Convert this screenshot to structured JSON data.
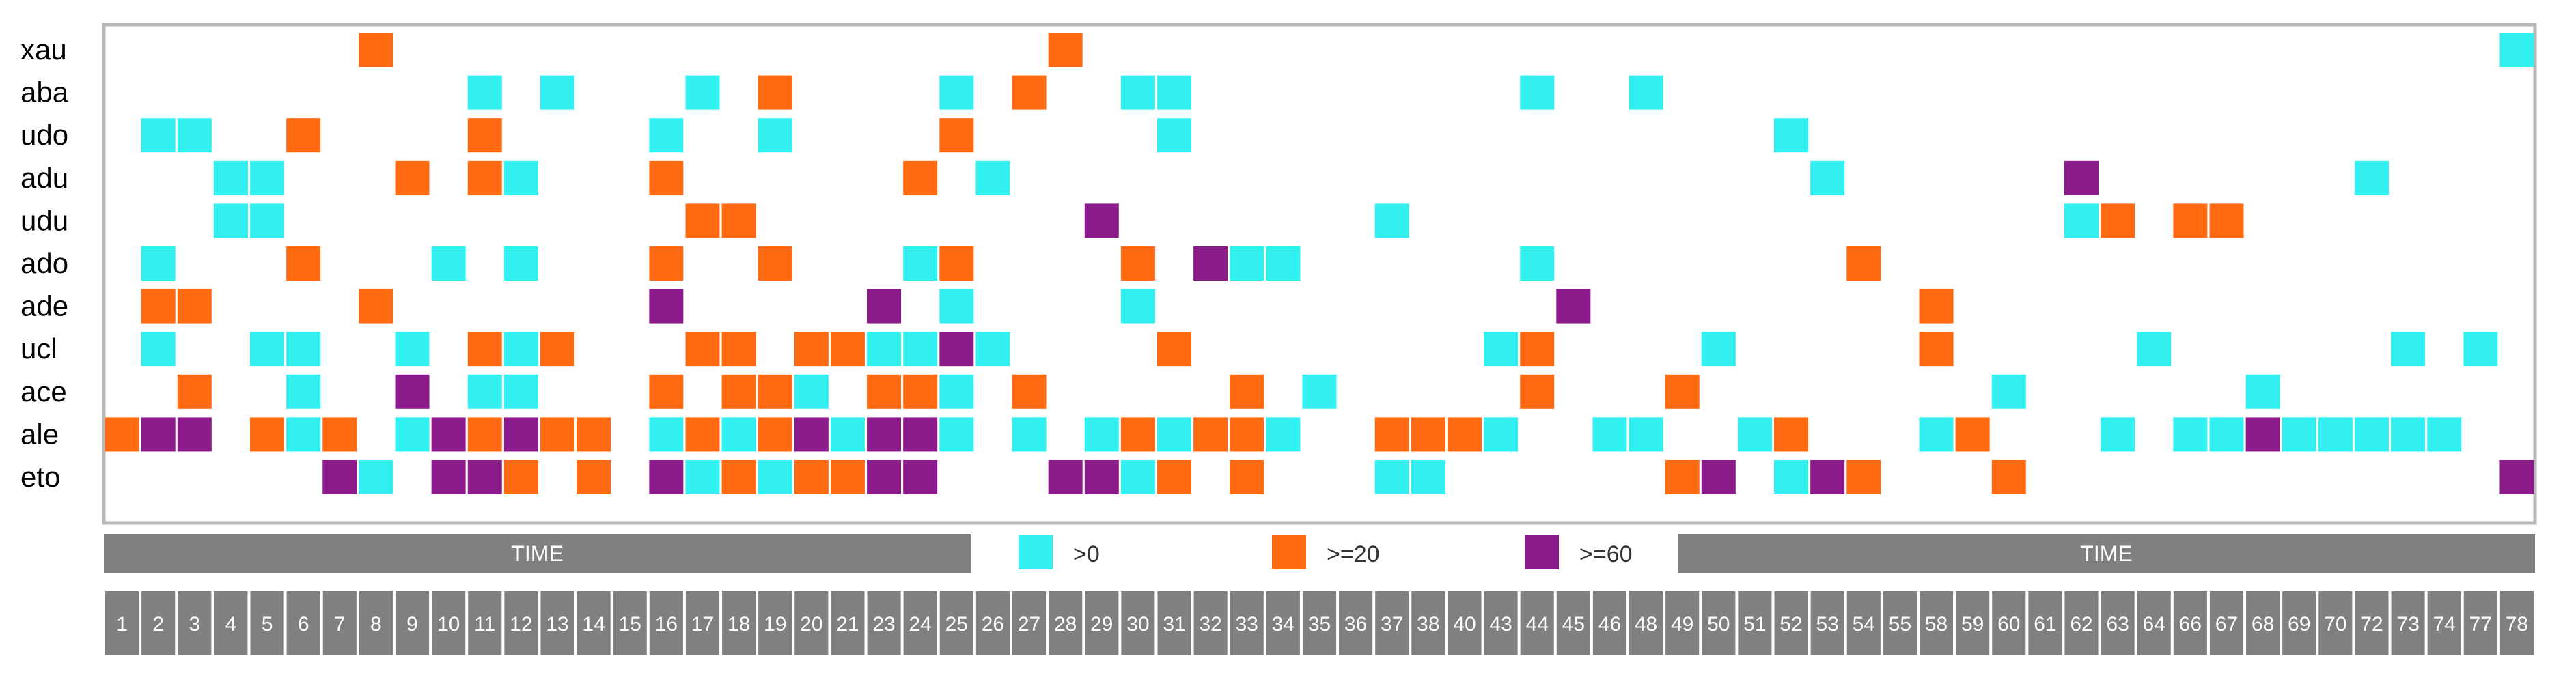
{
  "chart_data": {
    "type": "heatmap",
    "rows": [
      "xau",
      "aba",
      "udo",
      "adu",
      "udu",
      "ado",
      "ade",
      "ucl",
      "ace",
      "ale",
      "eto"
    ],
    "columns": [
      "1",
      "2",
      "3",
      "4",
      "5",
      "6",
      "7",
      "8",
      "9",
      "10",
      "11",
      "12",
      "13",
      "14",
      "15",
      "16",
      "17",
      "18",
      "19",
      "20",
      "21",
      "23",
      "24",
      "25",
      "26",
      "27",
      "28",
      "29",
      "30",
      "31",
      "32",
      "33",
      "34",
      "35",
      "36",
      "37",
      "38",
      "40",
      "43",
      "44",
      "45",
      "46",
      "48",
      "49",
      "50",
      "51",
      "52",
      "53",
      "54",
      "55",
      "58",
      "59",
      "60",
      "61",
      "62",
      "63",
      "64",
      "66",
      "67",
      "68",
      "69",
      "70",
      "72",
      "73",
      "74",
      "77",
      "78"
    ],
    "legend": [
      {
        "label": ">0",
        "level": 1,
        "color": "#33f0f0"
      },
      {
        "label": ">=20",
        "level": 2,
        "color": "#ff6a13"
      },
      {
        "label": ">=60",
        "level": 3,
        "color": "#8b1a8b"
      }
    ],
    "banner_labels": [
      "TIME",
      "TIME"
    ],
    "cells": [
      [
        "xau",
        "8",
        2
      ],
      [
        "xau",
        "28",
        2
      ],
      [
        "xau",
        "78",
        1
      ],
      [
        "aba",
        "11",
        1
      ],
      [
        "aba",
        "13",
        1
      ],
      [
        "aba",
        "17",
        1
      ],
      [
        "aba",
        "19",
        2
      ],
      [
        "aba",
        "25",
        1
      ],
      [
        "aba",
        "27",
        2
      ],
      [
        "aba",
        "30",
        1
      ],
      [
        "aba",
        "31",
        1
      ],
      [
        "aba",
        "44",
        1
      ],
      [
        "aba",
        "48",
        1
      ],
      [
        "udo",
        "2",
        1
      ],
      [
        "udo",
        "3",
        1
      ],
      [
        "udo",
        "6",
        2
      ],
      [
        "udo",
        "11",
        2
      ],
      [
        "udo",
        "16",
        1
      ],
      [
        "udo",
        "19",
        1
      ],
      [
        "udo",
        "25",
        2
      ],
      [
        "udo",
        "31",
        1
      ],
      [
        "udo",
        "52",
        1
      ],
      [
        "adu",
        "4",
        1
      ],
      [
        "adu",
        "5",
        1
      ],
      [
        "adu",
        "9",
        2
      ],
      [
        "adu",
        "11",
        2
      ],
      [
        "adu",
        "12",
        1
      ],
      [
        "adu",
        "16",
        2
      ],
      [
        "adu",
        "24",
        2
      ],
      [
        "adu",
        "26",
        1
      ],
      [
        "adu",
        "53",
        1
      ],
      [
        "adu",
        "62",
        3
      ],
      [
        "adu",
        "72",
        1
      ],
      [
        "udu",
        "4",
        1
      ],
      [
        "udu",
        "5",
        1
      ],
      [
        "udu",
        "17",
        2
      ],
      [
        "udu",
        "18",
        2
      ],
      [
        "udu",
        "29",
        3
      ],
      [
        "udu",
        "37",
        1
      ],
      [
        "udu",
        "62",
        1
      ],
      [
        "udu",
        "63",
        2
      ],
      [
        "udu",
        "66",
        2
      ],
      [
        "udu",
        "67",
        2
      ],
      [
        "ado",
        "2",
        1
      ],
      [
        "ado",
        "6",
        2
      ],
      [
        "ado",
        "10",
        1
      ],
      [
        "ado",
        "12",
        1
      ],
      [
        "ado",
        "16",
        2
      ],
      [
        "ado",
        "19",
        2
      ],
      [
        "ado",
        "24",
        1
      ],
      [
        "ado",
        "25",
        2
      ],
      [
        "ado",
        "30",
        2
      ],
      [
        "ado",
        "32",
        3
      ],
      [
        "ado",
        "33",
        1
      ],
      [
        "ado",
        "34",
        1
      ],
      [
        "ado",
        "44",
        1
      ],
      [
        "ado",
        "54",
        2
      ],
      [
        "ade",
        "2",
        2
      ],
      [
        "ade",
        "3",
        2
      ],
      [
        "ade",
        "8",
        2
      ],
      [
        "ade",
        "16",
        3
      ],
      [
        "ade",
        "23",
        3
      ],
      [
        "ade",
        "25",
        1
      ],
      [
        "ade",
        "30",
        1
      ],
      [
        "ade",
        "45",
        3
      ],
      [
        "ade",
        "58",
        2
      ],
      [
        "ucl",
        "2",
        1
      ],
      [
        "ucl",
        "5",
        1
      ],
      [
        "ucl",
        "6",
        1
      ],
      [
        "ucl",
        "9",
        1
      ],
      [
        "ucl",
        "11",
        2
      ],
      [
        "ucl",
        "12",
        1
      ],
      [
        "ucl",
        "13",
        2
      ],
      [
        "ucl",
        "17",
        2
      ],
      [
        "ucl",
        "18",
        2
      ],
      [
        "ucl",
        "20",
        2
      ],
      [
        "ucl",
        "21",
        2
      ],
      [
        "ucl",
        "23",
        1
      ],
      [
        "ucl",
        "24",
        1
      ],
      [
        "ucl",
        "25",
        3
      ],
      [
        "ucl",
        "26",
        1
      ],
      [
        "ucl",
        "31",
        2
      ],
      [
        "ucl",
        "43",
        1
      ],
      [
        "ucl",
        "44",
        2
      ],
      [
        "ucl",
        "50",
        1
      ],
      [
        "ucl",
        "58",
        2
      ],
      [
        "ucl",
        "64",
        1
      ],
      [
        "ucl",
        "73",
        1
      ],
      [
        "ucl",
        "77",
        1
      ],
      [
        "ace",
        "3",
        2
      ],
      [
        "ace",
        "6",
        1
      ],
      [
        "ace",
        "9",
        3
      ],
      [
        "ace",
        "11",
        1
      ],
      [
        "ace",
        "12",
        1
      ],
      [
        "ace",
        "16",
        2
      ],
      [
        "ace",
        "18",
        2
      ],
      [
        "ace",
        "19",
        2
      ],
      [
        "ace",
        "20",
        1
      ],
      [
        "ace",
        "23",
        2
      ],
      [
        "ace",
        "24",
        2
      ],
      [
        "ace",
        "25",
        1
      ],
      [
        "ace",
        "27",
        2
      ],
      [
        "ace",
        "33",
        2
      ],
      [
        "ace",
        "35",
        1
      ],
      [
        "ace",
        "44",
        2
      ],
      [
        "ace",
        "49",
        2
      ],
      [
        "ace",
        "60",
        1
      ],
      [
        "ace",
        "68",
        1
      ],
      [
        "ale",
        "1",
        2
      ],
      [
        "ale",
        "2",
        3
      ],
      [
        "ale",
        "3",
        3
      ],
      [
        "ale",
        "5",
        2
      ],
      [
        "ale",
        "6",
        1
      ],
      [
        "ale",
        "7",
        2
      ],
      [
        "ale",
        "9",
        1
      ],
      [
        "ale",
        "10",
        3
      ],
      [
        "ale",
        "11",
        2
      ],
      [
        "ale",
        "12",
        3
      ],
      [
        "ale",
        "13",
        2
      ],
      [
        "ale",
        "14",
        2
      ],
      [
        "ale",
        "16",
        1
      ],
      [
        "ale",
        "17",
        2
      ],
      [
        "ale",
        "18",
        1
      ],
      [
        "ale",
        "19",
        2
      ],
      [
        "ale",
        "20",
        3
      ],
      [
        "ale",
        "21",
        1
      ],
      [
        "ale",
        "23",
        3
      ],
      [
        "ale",
        "24",
        3
      ],
      [
        "ale",
        "25",
        1
      ],
      [
        "ale",
        "27",
        1
      ],
      [
        "ale",
        "29",
        1
      ],
      [
        "ale",
        "30",
        2
      ],
      [
        "ale",
        "31",
        1
      ],
      [
        "ale",
        "32",
        2
      ],
      [
        "ale",
        "33",
        2
      ],
      [
        "ale",
        "34",
        1
      ],
      [
        "ale",
        "37",
        2
      ],
      [
        "ale",
        "38",
        2
      ],
      [
        "ale",
        "40",
        2
      ],
      [
        "ale",
        "43",
        1
      ],
      [
        "ale",
        "46",
        1
      ],
      [
        "ale",
        "48",
        1
      ],
      [
        "ale",
        "51",
        1
      ],
      [
        "ale",
        "52",
        2
      ],
      [
        "ale",
        "58",
        1
      ],
      [
        "ale",
        "59",
        2
      ],
      [
        "ale",
        "63",
        1
      ],
      [
        "ale",
        "66",
        1
      ],
      [
        "ale",
        "67",
        1
      ],
      [
        "ale",
        "68",
        3
      ],
      [
        "ale",
        "69",
        1
      ],
      [
        "ale",
        "70",
        1
      ],
      [
        "ale",
        "72",
        1
      ],
      [
        "ale",
        "73",
        1
      ],
      [
        "ale",
        "74",
        1
      ],
      [
        "eto",
        "7",
        3
      ],
      [
        "eto",
        "8",
        1
      ],
      [
        "eto",
        "10",
        3
      ],
      [
        "eto",
        "11",
        3
      ],
      [
        "eto",
        "12",
        2
      ],
      [
        "eto",
        "14",
        2
      ],
      [
        "eto",
        "16",
        3
      ],
      [
        "eto",
        "17",
        1
      ],
      [
        "eto",
        "18",
        2
      ],
      [
        "eto",
        "19",
        1
      ],
      [
        "eto",
        "20",
        2
      ],
      [
        "eto",
        "21",
        2
      ],
      [
        "eto",
        "23",
        3
      ],
      [
        "eto",
        "24",
        3
      ],
      [
        "eto",
        "28",
        3
      ],
      [
        "eto",
        "29",
        3
      ],
      [
        "eto",
        "30",
        1
      ],
      [
        "eto",
        "31",
        2
      ],
      [
        "eto",
        "33",
        2
      ],
      [
        "eto",
        "37",
        1
      ],
      [
        "eto",
        "38",
        1
      ],
      [
        "eto",
        "49",
        2
      ],
      [
        "eto",
        "50",
        3
      ],
      [
        "eto",
        "52",
        1
      ],
      [
        "eto",
        "53",
        3
      ],
      [
        "eto",
        "54",
        2
      ],
      [
        "eto",
        "60",
        2
      ],
      [
        "eto",
        "78",
        3
      ]
    ]
  }
}
